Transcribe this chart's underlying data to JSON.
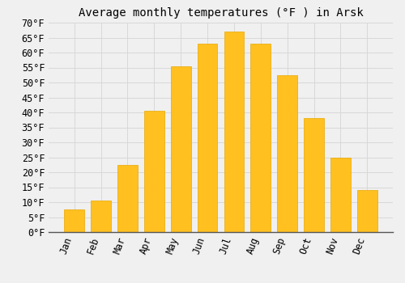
{
  "title": "Average monthly temperatures (°F ) in Arsk",
  "months": [
    "Jan",
    "Feb",
    "Mar",
    "Apr",
    "May",
    "Jun",
    "Jul",
    "Aug",
    "Sep",
    "Oct",
    "Nov",
    "Dec"
  ],
  "values": [
    7.5,
    10.5,
    22.5,
    40.5,
    55.5,
    63,
    67,
    63,
    52.5,
    38,
    25,
    14
  ],
  "bar_color": "#FFC020",
  "bar_edge_color": "#E8A800",
  "ylim": [
    0,
    70
  ],
  "yticks": [
    0,
    5,
    10,
    15,
    20,
    25,
    30,
    35,
    40,
    45,
    50,
    55,
    60,
    65,
    70
  ],
  "ylabel_suffix": "°F",
  "background_color": "#f0f0f0",
  "plot_bg_color": "#f0f0f0",
  "grid_color": "#d8d8d8",
  "title_fontsize": 10,
  "tick_fontsize": 8.5
}
